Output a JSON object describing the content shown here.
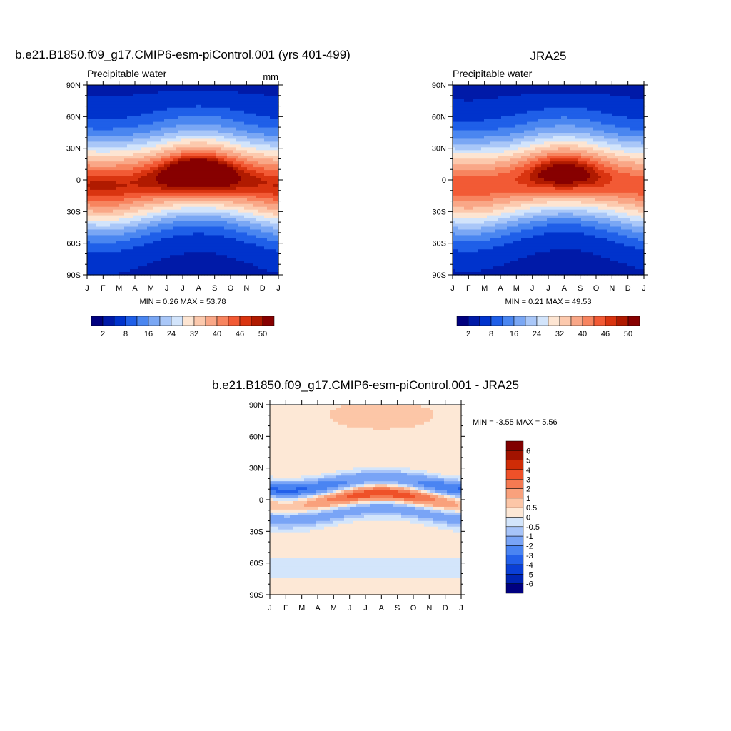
{
  "colors": {
    "abs_scale": [
      "#00007f",
      "#001aa8",
      "#0033cc",
      "#1f5fe8",
      "#4a86f0",
      "#7aa7f4",
      "#a9c7f8",
      "#d2e4fb",
      "#fde5d2",
      "#fcc9ad",
      "#f9a787",
      "#f7845f",
      "#f25a35",
      "#d93410",
      "#b01a00",
      "#870000"
    ],
    "diff_scale": [
      "#000080",
      "#0024b3",
      "#0a3fd6",
      "#2360ea",
      "#4a84f2",
      "#79a4f6",
      "#a7c4f9",
      "#d3e5fb",
      "#fde8d6",
      "#fcc6a7",
      "#f9a17c",
      "#f57a52",
      "#ef5129",
      "#cf2c06",
      "#a21300",
      "#800000"
    ]
  },
  "chart_data": [
    {
      "id": "model",
      "type": "heatmap",
      "title": "b.e21.B1850.f09_g17.CMIP6-esm-piControl.001 (yrs 401-499)",
      "subtitle_left": "Precipitable water",
      "subtitle_right": "mm",
      "xticks": [
        "J",
        "F",
        "M",
        "A",
        "M",
        "J",
        "J",
        "A",
        "S",
        "O",
        "N",
        "D",
        "J"
      ],
      "yticks": [
        "90N",
        "60N",
        "30N",
        "0",
        "30S",
        "60S",
        "90S"
      ],
      "xlim": [
        0,
        12
      ],
      "ylim": [
        -90,
        90
      ],
      "stats": "MIN =   0.26 MAX =  53.78",
      "colorbar_labels": [
        "2",
        "8",
        "16",
        "24",
        "32",
        "40",
        "46",
        "50"
      ],
      "levels": [
        2,
        4,
        8,
        12,
        16,
        20,
        24,
        28,
        32,
        36,
        40,
        43,
        46,
        48,
        50
      ],
      "field": {
        "kind": "pw",
        "amp": 1.04,
        "shift": 0
      }
    },
    {
      "id": "obs",
      "type": "heatmap",
      "title": "JRA25",
      "subtitle_left": "Precipitable water",
      "subtitle_right": "",
      "xticks": [
        "J",
        "F",
        "M",
        "A",
        "M",
        "J",
        "J",
        "A",
        "S",
        "O",
        "N",
        "D",
        "J"
      ],
      "yticks": [
        "90N",
        "60N",
        "30N",
        "0",
        "30S",
        "60S",
        "90S"
      ],
      "xlim": [
        0,
        12
      ],
      "ylim": [
        -90,
        90
      ],
      "stats": "MIN =   0.21 MAX =  49.53",
      "colorbar_labels": [
        "2",
        "8",
        "16",
        "24",
        "32",
        "40",
        "46",
        "50"
      ],
      "levels": [
        2,
        4,
        8,
        12,
        16,
        20,
        24,
        28,
        32,
        36,
        40,
        43,
        46,
        48,
        50
      ],
      "field": {
        "kind": "pw",
        "amp": 0.97,
        "shift": 0
      }
    },
    {
      "id": "diff",
      "type": "heatmap",
      "title": "b.e21.B1850.f09_g17.CMIP6-esm-piControl.001 - JRA25",
      "xticks": [
        "J",
        "F",
        "M",
        "A",
        "M",
        "J",
        "J",
        "A",
        "S",
        "O",
        "N",
        "D",
        "J"
      ],
      "yticks": [
        "90N",
        "60N",
        "30N",
        "0",
        "30S",
        "60S",
        "90S"
      ],
      "xlim": [
        0,
        12
      ],
      "ylim": [
        -90,
        90
      ],
      "stats": "MIN =  -3.55 MAX =   5.56",
      "colorbar_labels": [
        "6",
        "5",
        "4",
        "3",
        "2",
        "1",
        "0.5",
        "0",
        "-0.5",
        "-1",
        "-2",
        "-3",
        "-4",
        "-5",
        "-6"
      ],
      "levels": [
        -6,
        -5,
        -4,
        -3,
        -2,
        -1,
        -0.5,
        0,
        0.5,
        1,
        2,
        3,
        4,
        5,
        6
      ],
      "field": {
        "kind": "diff"
      }
    }
  ]
}
